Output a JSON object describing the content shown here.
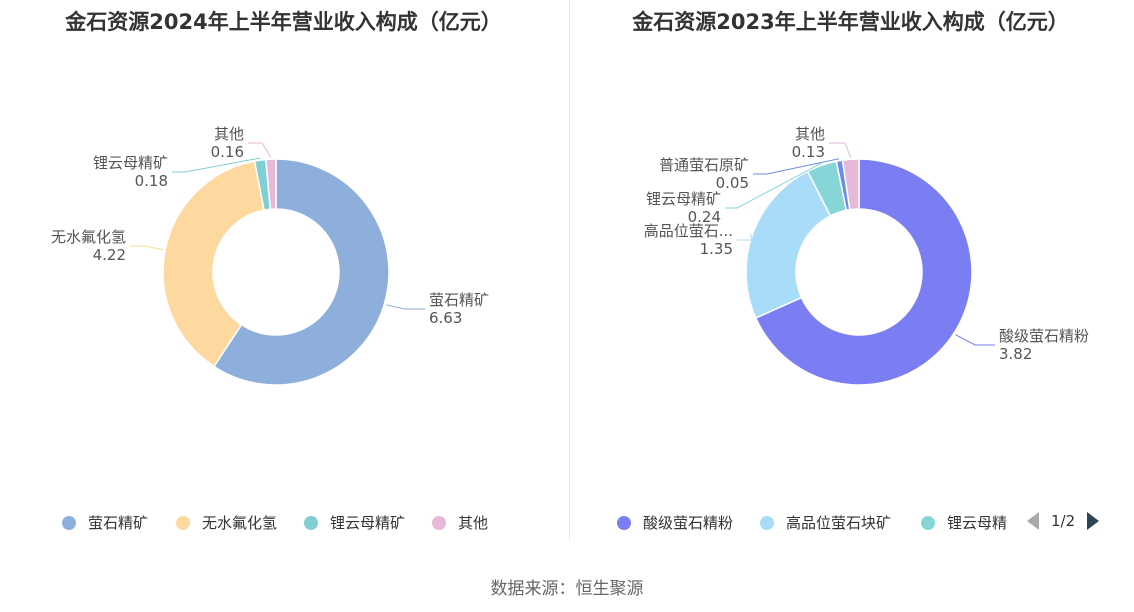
{
  "source_text": "数据来源：恒生聚源",
  "chart_data": [
    {
      "type": "pie",
      "title": "金石资源2024年上半年营业收入构成（亿元）",
      "categories": [
        "萤石精矿",
        "无水氟化氢",
        "锂云母精矿",
        "其他"
      ],
      "values": [
        6.63,
        4.22,
        0.18,
        0.16
      ],
      "value_labels": [
        "6.63",
        "4.22",
        "0.18",
        "0.16"
      ],
      "colors": [
        "#8eaedb",
        "#fdd9a0",
        "#7fcfd3",
        "#e6b8da"
      ],
      "legend": {
        "position": "bottom",
        "items": [
          "萤石精矿",
          "无水氟化氢",
          "锂云母精矿",
          "其他"
        ]
      }
    },
    {
      "type": "pie",
      "title": "金石资源2023年上半年营业收入构成（亿元）",
      "categories": [
        "酸级萤石精粉",
        "高品位萤石块矿",
        "锂云母精矿",
        "普通萤石原矿",
        "其他"
      ],
      "slice_labels": [
        "酸级萤石精粉",
        "高品位萤石...",
        "锂云母精矿",
        "普通萤石原矿",
        "其他"
      ],
      "values": [
        3.82,
        1.35,
        0.24,
        0.05,
        0.13
      ],
      "value_labels": [
        "3.82",
        "1.35",
        "0.24",
        "0.05",
        "0.13"
      ],
      "colors": [
        "#7b7ef2",
        "#a8dcf8",
        "#86d6d8",
        "#6f8fe6",
        "#e6b8da"
      ],
      "legend": {
        "position": "bottom",
        "items": [
          "酸级萤石精粉",
          "高品位萤石块矿",
          "锂云母精"
        ],
        "page": "1/2"
      }
    }
  ]
}
